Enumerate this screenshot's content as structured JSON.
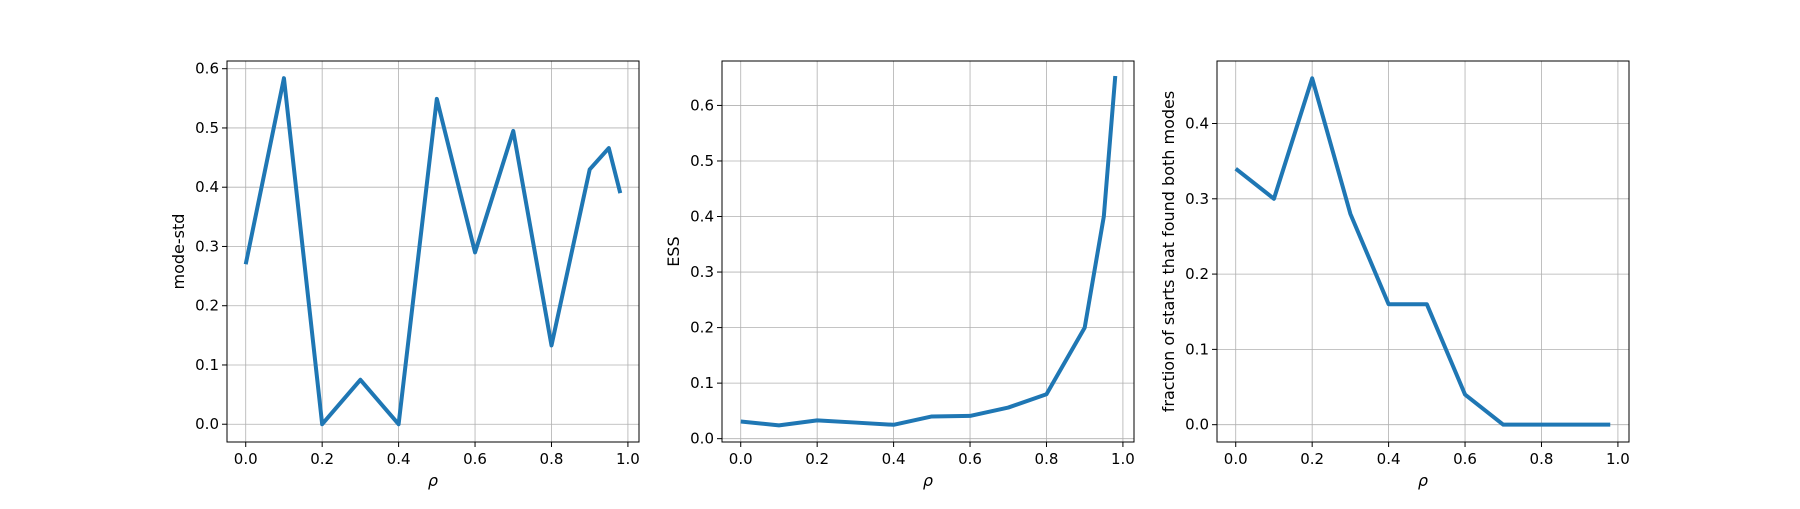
{
  "colors": {
    "series": "#1f77b4",
    "grid": "#b0b0b0",
    "background": "#ffffff"
  },
  "chart_data": [
    {
      "type": "line",
      "title": "",
      "xlabel": "ρ",
      "ylabel": "mode-std",
      "grid": true,
      "legend": "none",
      "xlim": [
        -0.049,
        1.029
      ],
      "ylim": [
        -0.03,
        0.613
      ],
      "xticks": [
        0.0,
        0.2,
        0.4,
        0.6,
        0.8,
        1.0
      ],
      "xtick_labels": [
        "0.0",
        "0.2",
        "0.4",
        "0.6",
        "0.8",
        "1.0"
      ],
      "yticks": [
        0.0,
        0.1,
        0.2,
        0.3,
        0.4,
        0.5,
        0.6
      ],
      "ytick_labels": [
        "0.0",
        "0.1",
        "0.2",
        "0.3",
        "0.4",
        "0.5",
        "0.6"
      ],
      "x": [
        0.0,
        0.1,
        0.2,
        0.3,
        0.4,
        0.5,
        0.6,
        0.7,
        0.8,
        0.9,
        0.95,
        0.98
      ],
      "series": [
        {
          "values": [
            0.27,
            0.584,
            0.0,
            0.075,
            0.0,
            0.549,
            0.29,
            0.495,
            0.133,
            0.43,
            0.466,
            0.39
          ]
        }
      ]
    },
    {
      "type": "line",
      "title": "",
      "xlabel": "ρ",
      "ylabel": "ESS",
      "grid": true,
      "legend": "none",
      "xlim": [
        -0.049,
        1.029
      ],
      "ylim": [
        -0.006,
        0.68
      ],
      "xticks": [
        0.0,
        0.2,
        0.4,
        0.6,
        0.8,
        1.0
      ],
      "xtick_labels": [
        "0.0",
        "0.2",
        "0.4",
        "0.6",
        "0.8",
        "1.0"
      ],
      "yticks": [
        0.0,
        0.1,
        0.2,
        0.3,
        0.4,
        0.5,
        0.6
      ],
      "ytick_labels": [
        "0.0",
        "0.1",
        "0.2",
        "0.3",
        "0.4",
        "0.5",
        "0.6"
      ],
      "x": [
        0.0,
        0.1,
        0.2,
        0.3,
        0.4,
        0.5,
        0.6,
        0.7,
        0.8,
        0.9,
        0.95,
        0.98
      ],
      "series": [
        {
          "values": [
            0.031,
            0.024,
            0.033,
            0.029,
            0.025,
            0.04,
            0.041,
            0.056,
            0.08,
            0.2,
            0.4,
            0.653
          ]
        }
      ]
    },
    {
      "type": "line",
      "title": "",
      "xlabel": "ρ",
      "ylabel": "fraction of starts that found both modes",
      "grid": true,
      "legend": "none",
      "xlim": [
        -0.049,
        1.029
      ],
      "ylim": [
        -0.023,
        0.483
      ],
      "xticks": [
        0.0,
        0.2,
        0.4,
        0.6,
        0.8,
        1.0
      ],
      "xtick_labels": [
        "0.0",
        "0.2",
        "0.4",
        "0.6",
        "0.8",
        "1.0"
      ],
      "yticks": [
        0.0,
        0.1,
        0.2,
        0.3,
        0.4
      ],
      "ytick_labels": [
        "0.0",
        "0.1",
        "0.2",
        "0.3",
        "0.4"
      ],
      "x": [
        0.0,
        0.1,
        0.2,
        0.3,
        0.4,
        0.5,
        0.6,
        0.7,
        0.8,
        0.9,
        0.95,
        0.98
      ],
      "series": [
        {
          "values": [
            0.34,
            0.3,
            0.46,
            0.28,
            0.16,
            0.16,
            0.04,
            0.0,
            0.0,
            0.0,
            0.0,
            0.0
          ]
        }
      ]
    }
  ]
}
